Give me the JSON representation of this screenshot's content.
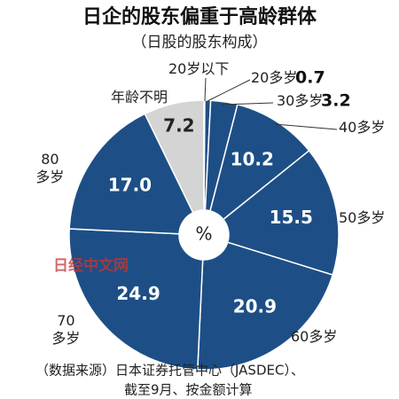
{
  "chart_data": {
    "type": "pie",
    "title": "日企的股东偏重于高龄群体",
    "subtitle": "（日股的股东构成）",
    "unit": "%",
    "categories": [
      "20岁以下",
      "20多岁",
      "30多岁",
      "40多岁",
      "50多岁",
      "60多岁",
      "70多岁",
      "80多岁",
      "年龄不明"
    ],
    "values": [
      0.1,
      0.7,
      3.2,
      10.2,
      15.5,
      20.9,
      24.9,
      17.0,
      7.2
    ],
    "value_labels": [
      null,
      "0.7",
      "3.2",
      "10.2",
      "15.5",
      "20.9",
      "24.9",
      "17.0",
      "7.2"
    ],
    "colors": [
      "#1d4f86",
      "#1d4f86",
      "#1d4f86",
      "#1d4f86",
      "#1d4f86",
      "#1d4f86",
      "#1d4f86",
      "#1d4f86",
      "#d4d4d4"
    ],
    "watermark": "日经中文网",
    "source": [
      "（数据来源）日本证券托管中心（JASDEC）、",
      "截至9月、按金额计算"
    ]
  }
}
